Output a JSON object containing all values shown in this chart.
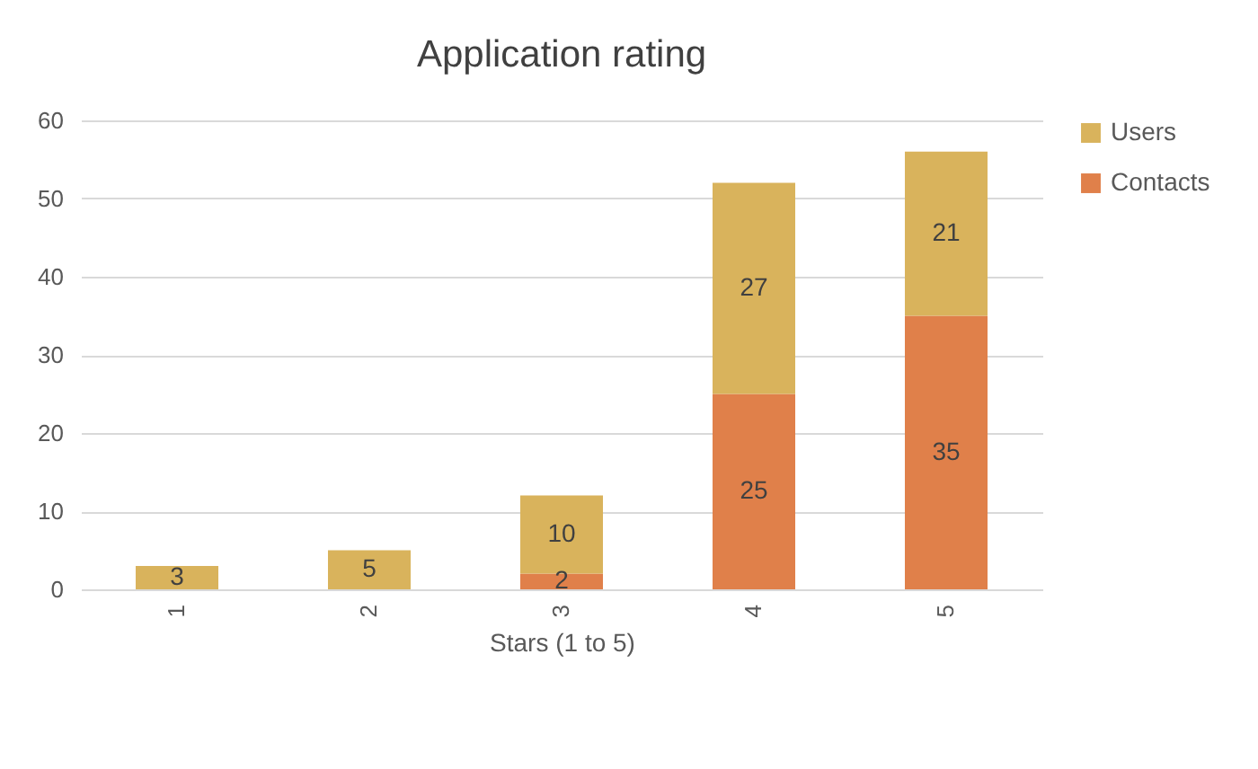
{
  "chart_data": {
    "type": "bar",
    "title": "Application rating",
    "xlabel": "Stars (1 to 5)",
    "categories": [
      "1",
      "2",
      "3",
      "4",
      "5"
    ],
    "series": [
      {
        "name": "Contacts",
        "color": "#e0804a",
        "values": [
          0,
          0,
          2,
          25,
          35
        ],
        "value_labels": [
          null,
          null,
          "2",
          "25",
          "35"
        ]
      },
      {
        "name": "Users",
        "color": "#d9b35c",
        "values": [
          3,
          5,
          10,
          27,
          21
        ],
        "value_labels": [
          "3",
          "5",
          "10",
          "27",
          "21"
        ]
      }
    ],
    "stacked": true,
    "ylim": [
      0,
      60
    ],
    "yticks": [
      0,
      10,
      20,
      30,
      40,
      50,
      60
    ],
    "grid": "y",
    "legend": "right"
  }
}
